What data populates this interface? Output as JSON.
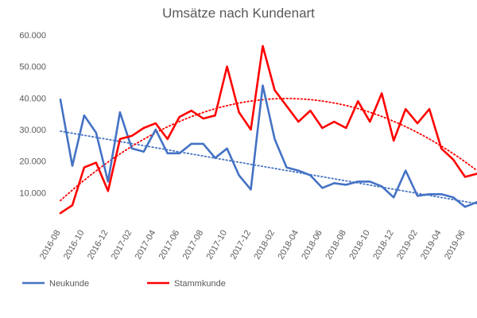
{
  "chart_data": {
    "type": "line",
    "title": "Umsätze nach Kundenart",
    "xlabel": "",
    "ylabel": "",
    "ylim": [
      0,
      60000
    ],
    "y_tick_labels": [
      "",
      "10.000",
      "20.000",
      "30.000",
      "40.000",
      "50.000",
      "60.000"
    ],
    "y_tick_values": [
      0,
      10000,
      20000,
      30000,
      40000,
      50000,
      60000
    ],
    "grid": false,
    "legend_position": "bottom-left",
    "x": [
      "2016-08",
      "2016-09",
      "2016-10",
      "2016-11",
      "2016-12",
      "2017-01",
      "2017-02",
      "2017-03",
      "2017-04",
      "2017-05",
      "2017-06",
      "2017-07",
      "2017-08",
      "2017-09",
      "2017-10",
      "2017-11",
      "2017-12",
      "2018-01",
      "2018-02",
      "2018-03",
      "2018-04",
      "2018-05",
      "2018-06",
      "2018-07",
      "2018-08",
      "2018-09",
      "2018-10",
      "2018-11",
      "2018-12",
      "2019-01",
      "2019-02",
      "2019-03",
      "2019-04",
      "2019-05",
      "2019-06",
      "2019-07"
    ],
    "x_tick_labels": [
      {
        "index": 0,
        "label": "2016-08"
      },
      {
        "index": 2,
        "label": "2016-10"
      },
      {
        "index": 4,
        "label": "2016-12"
      },
      {
        "index": 6,
        "label": "2017-02"
      },
      {
        "index": 8,
        "label": "2017-04"
      },
      {
        "index": 10,
        "label": "2017-06"
      },
      {
        "index": 12,
        "label": "2017-08"
      },
      {
        "index": 14,
        "label": "2017-10"
      },
      {
        "index": 16,
        "label": "2017-12"
      },
      {
        "index": 18,
        "label": "2018-02"
      },
      {
        "index": 20,
        "label": "2018-04"
      },
      {
        "index": 22,
        "label": "2018-06"
      },
      {
        "index": 24,
        "label": "2018-08"
      },
      {
        "index": 26,
        "label": "2018-10"
      },
      {
        "index": 28,
        "label": "2018-12"
      },
      {
        "index": 30,
        "label": "2019-02"
      },
      {
        "index": 32,
        "label": "2019-04"
      },
      {
        "index": 34,
        "label": "2019-06"
      }
    ],
    "series": [
      {
        "name": "Neukunde",
        "color": "#4472c4",
        "values": [
          39500,
          18500,
          34500,
          29000,
          13500,
          35500,
          24000,
          23000,
          30000,
          22500,
          22500,
          25500,
          25500,
          21000,
          24000,
          15500,
          11000,
          44000,
          27000,
          18000,
          17000,
          15500,
          11500,
          13000,
          12500,
          13500,
          13500,
          12000,
          8500,
          17000,
          9000,
          9500,
          9500,
          8500,
          5500,
          7000
        ],
        "trendline": {
          "type": "linear",
          "color": "#4472c4",
          "start": 29500,
          "end": 6500
        }
      },
      {
        "name": "Stammkunde",
        "color": "#ff0000",
        "values": [
          3500,
          6000,
          18000,
          19500,
          10500,
          27000,
          28000,
          30500,
          32000,
          27000,
          34000,
          36000,
          33500,
          34500,
          50000,
          35500,
          30000,
          56500,
          42500,
          37500,
          32500,
          36000,
          30500,
          32500,
          30500,
          39000,
          32500,
          41500,
          26500,
          36500,
          32000,
          36500,
          24000,
          20500,
          15000,
          16000
        ],
        "trendline": {
          "type": "polynomial-2",
          "color": "#ff0000",
          "start": 7500,
          "peak": 39500,
          "end": 17000
        }
      }
    ]
  },
  "icons": {
    "legend_line_1": "line-swatch-icon",
    "legend_line_2": "line-swatch-icon"
  }
}
